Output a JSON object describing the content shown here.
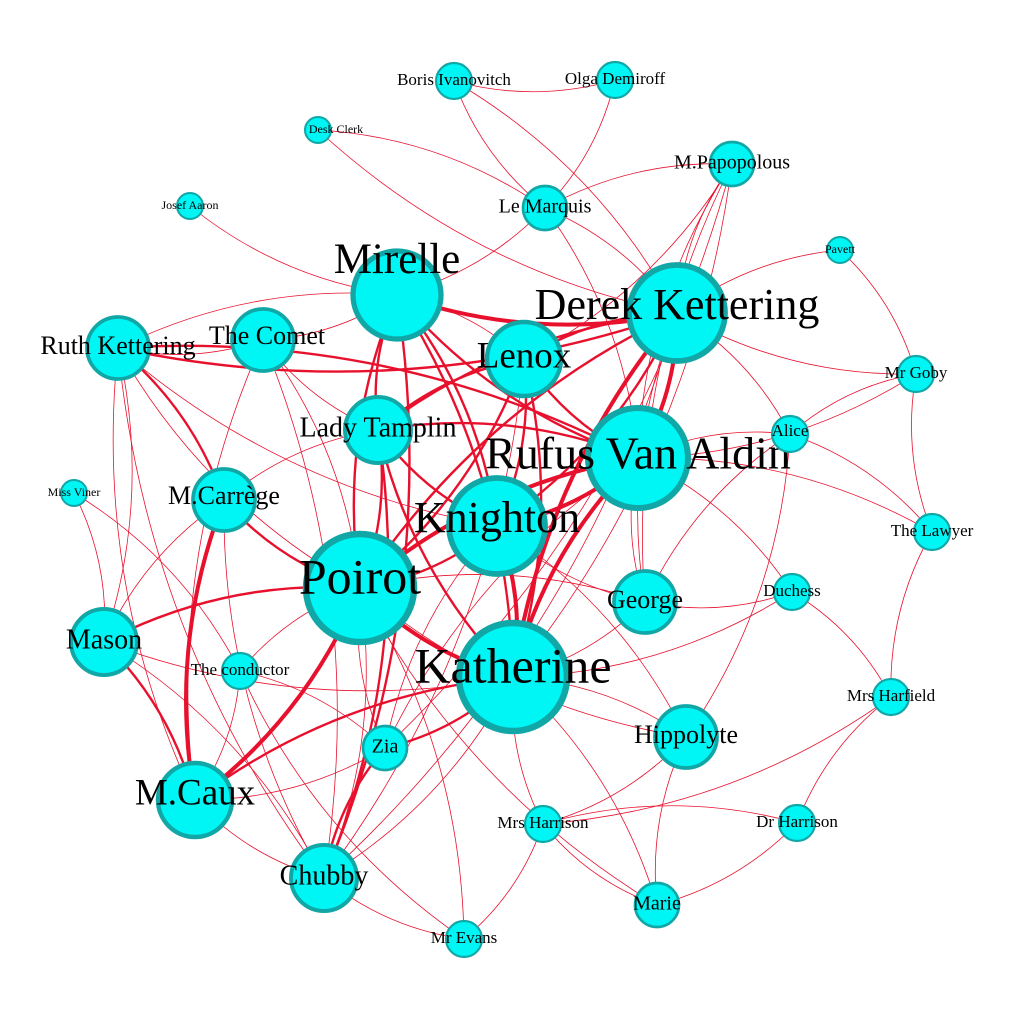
{
  "colors": {
    "node_fill": "#00f5f5",
    "node_stroke": "#11a7a7",
    "edge": "#e8112d",
    "label": "#000000",
    "background": "#ffffff"
  },
  "nodes": [
    {
      "id": "poirot",
      "label": "Poirot",
      "importance": 10
    },
    {
      "id": "katherine",
      "label": "Katherine",
      "importance": 10
    },
    {
      "id": "rufus",
      "label": "Rufus Van Aldin",
      "importance": 9
    },
    {
      "id": "derek",
      "label": "Derek Kettering",
      "importance": 8
    },
    {
      "id": "knighton",
      "label": "Knighton",
      "importance": 8
    },
    {
      "id": "mirelle",
      "label": "Mirelle",
      "importance": 7
    },
    {
      "id": "lenox",
      "label": "Lenox",
      "importance": 6
    },
    {
      "id": "tamplin",
      "label": "Lady Tamplin",
      "importance": 5
    },
    {
      "id": "caux",
      "label": "M.Caux",
      "importance": 6
    },
    {
      "id": "chubby",
      "label": "Chubby",
      "importance": 5
    },
    {
      "id": "mason",
      "label": "Mason",
      "importance": 5
    },
    {
      "id": "ruth",
      "label": "Ruth Kettering",
      "importance": 4
    },
    {
      "id": "comet",
      "label": "The Comet",
      "importance": 4
    },
    {
      "id": "carrege",
      "label": "M.Carrège",
      "importance": 4
    },
    {
      "id": "george",
      "label": "George",
      "importance": 4
    },
    {
      "id": "hippolyte",
      "label": "Hippolyte",
      "importance": 4
    },
    {
      "id": "marie",
      "label": "Marie",
      "importance": 3
    },
    {
      "id": "zia",
      "label": "Zia",
      "importance": 3
    },
    {
      "id": "conductor",
      "label": "The conductor",
      "importance": 2
    },
    {
      "id": "lemarquis",
      "label": "Le Marquis",
      "importance": 3
    },
    {
      "id": "papopolous",
      "label": "M.Papopolous",
      "importance": 3
    },
    {
      "id": "alice",
      "label": "Alice",
      "importance": 2
    },
    {
      "id": "duchess",
      "label": "Duchess",
      "importance": 2
    },
    {
      "id": "lawyer",
      "label": "The Lawyer",
      "importance": 2
    },
    {
      "id": "goby",
      "label": "Mr Goby",
      "importance": 2
    },
    {
      "id": "pavett",
      "label": "Pavett",
      "importance": 1
    },
    {
      "id": "mrsharrison",
      "label": "Mrs Harrison",
      "importance": 2
    },
    {
      "id": "drharrison",
      "label": "Dr Harrison",
      "importance": 2
    },
    {
      "id": "harfield",
      "label": "Mrs Harfield",
      "importance": 2
    },
    {
      "id": "evans",
      "label": "Mr Evans",
      "importance": 2
    },
    {
      "id": "boris",
      "label": "Boris Ivanovitch",
      "importance": 2
    },
    {
      "id": "olga",
      "label": "Olga Demiroff",
      "importance": 2
    },
    {
      "id": "deskclerk",
      "label": "Desk Clerk",
      "importance": 1
    },
    {
      "id": "josef",
      "label": "Josef Aaron",
      "importance": 1
    },
    {
      "id": "viner",
      "label": "Miss Viner",
      "importance": 1
    }
  ],
  "edges": [
    [
      "poirot",
      "katherine",
      3
    ],
    [
      "poirot",
      "rufus",
      3
    ],
    [
      "poirot",
      "knighton",
      2
    ],
    [
      "poirot",
      "derek",
      2
    ],
    [
      "poirot",
      "lenox",
      2
    ],
    [
      "poirot",
      "mirelle",
      2
    ],
    [
      "poirot",
      "tamplin",
      2
    ],
    [
      "poirot",
      "caux",
      3
    ],
    [
      "poirot",
      "mason",
      2
    ],
    [
      "poirot",
      "chubby",
      1
    ],
    [
      "poirot",
      "zia",
      1
    ],
    [
      "poirot",
      "george",
      1
    ],
    [
      "poirot",
      "hippolyte",
      1
    ],
    [
      "poirot",
      "carrege",
      2
    ],
    [
      "poirot",
      "comet",
      1
    ],
    [
      "poirot",
      "ruth",
      1
    ],
    [
      "poirot",
      "conductor",
      1
    ],
    [
      "poirot",
      "evans",
      1
    ],
    [
      "poirot",
      "marie",
      1
    ],
    [
      "katherine",
      "rufus",
      3
    ],
    [
      "katherine",
      "knighton",
      3
    ],
    [
      "katherine",
      "derek",
      3
    ],
    [
      "katherine",
      "lenox",
      2
    ],
    [
      "katherine",
      "tamplin",
      2
    ],
    [
      "katherine",
      "mirelle",
      2
    ],
    [
      "katherine",
      "zia",
      2
    ],
    [
      "katherine",
      "caux",
      2
    ],
    [
      "katherine",
      "chubby",
      1
    ],
    [
      "katherine",
      "george",
      1
    ],
    [
      "katherine",
      "hippolyte",
      1
    ],
    [
      "katherine",
      "mrsharrison",
      1
    ],
    [
      "katherine",
      "marie",
      1
    ],
    [
      "katherine",
      "duchess",
      1
    ],
    [
      "katherine",
      "mason",
      1
    ],
    [
      "katherine",
      "papopolous",
      1
    ],
    [
      "rufus",
      "knighton",
      3
    ],
    [
      "rufus",
      "derek",
      3
    ],
    [
      "rufus",
      "lenox",
      2
    ],
    [
      "rufus",
      "tamplin",
      2
    ],
    [
      "rufus",
      "mirelle",
      2
    ],
    [
      "rufus",
      "george",
      1
    ],
    [
      "rufus",
      "alice",
      1
    ],
    [
      "rufus",
      "goby",
      1
    ],
    [
      "rufus",
      "lawyer",
      1
    ],
    [
      "rufus",
      "ruth",
      2
    ],
    [
      "rufus",
      "papopolous",
      1
    ],
    [
      "rufus",
      "lemarquis",
      1
    ],
    [
      "rufus",
      "duchess",
      1
    ],
    [
      "rufus",
      "zia",
      1
    ],
    [
      "derek",
      "mirelle",
      3
    ],
    [
      "derek",
      "lenox",
      2
    ],
    [
      "derek",
      "knighton",
      2
    ],
    [
      "derek",
      "tamplin",
      2
    ],
    [
      "derek",
      "ruth",
      2
    ],
    [
      "derek",
      "lemarquis",
      1
    ],
    [
      "derek",
      "pavett",
      1
    ],
    [
      "derek",
      "goby",
      1
    ],
    [
      "derek",
      "papopolous",
      1
    ],
    [
      "derek",
      "george",
      1
    ],
    [
      "derek",
      "alice",
      1
    ],
    [
      "derek",
      "boris",
      1
    ],
    [
      "derek",
      "chubby",
      1
    ],
    [
      "knighton",
      "mirelle",
      2
    ],
    [
      "knighton",
      "tamplin",
      2
    ],
    [
      "knighton",
      "lenox",
      2
    ],
    [
      "knighton",
      "ruth",
      1
    ],
    [
      "knighton",
      "george",
      1
    ],
    [
      "knighton",
      "hippolyte",
      1
    ],
    [
      "knighton",
      "zia",
      1
    ],
    [
      "mirelle",
      "lenox",
      1
    ],
    [
      "mirelle",
      "tamplin",
      2
    ],
    [
      "mirelle",
      "comet",
      1
    ],
    [
      "mirelle",
      "ruth",
      1
    ],
    [
      "mirelle",
      "chubby",
      2
    ],
    [
      "mirelle",
      "lemarquis",
      1
    ],
    [
      "mirelle",
      "josef",
      1
    ],
    [
      "lenox",
      "tamplin",
      2
    ],
    [
      "lenox",
      "chubby",
      1
    ],
    [
      "lenox",
      "papopolous",
      1
    ],
    [
      "tamplin",
      "chubby",
      2
    ],
    [
      "tamplin",
      "carrege",
      1
    ],
    [
      "tamplin",
      "comet",
      1
    ],
    [
      "caux",
      "mason",
      2
    ],
    [
      "caux",
      "carrege",
      3
    ],
    [
      "caux",
      "chubby",
      1
    ],
    [
      "caux",
      "ruth",
      1
    ],
    [
      "caux",
      "conductor",
      1
    ],
    [
      "caux",
      "comet",
      1
    ],
    [
      "caux",
      "zia",
      1
    ],
    [
      "chubby",
      "zia",
      2
    ],
    [
      "chubby",
      "evans",
      1
    ],
    [
      "chubby",
      "ruth",
      1
    ],
    [
      "chubby",
      "comet",
      1
    ],
    [
      "chubby",
      "carrege",
      1
    ],
    [
      "mason",
      "ruth",
      1
    ],
    [
      "mason",
      "carrege",
      1
    ],
    [
      "mason",
      "viner",
      1
    ],
    [
      "mason",
      "chubby",
      1
    ],
    [
      "ruth",
      "comet",
      1
    ],
    [
      "ruth",
      "carrege",
      2
    ],
    [
      "george",
      "duchess",
      1
    ],
    [
      "george",
      "alice",
      1
    ],
    [
      "hippolyte",
      "marie",
      1
    ],
    [
      "hippolyte",
      "mrsharrison",
      1
    ],
    [
      "hippolyte",
      "alice",
      1
    ],
    [
      "marie",
      "mrsharrison",
      1
    ],
    [
      "marie",
      "drharrison",
      1
    ],
    [
      "mrsharrison",
      "drharrison",
      1
    ],
    [
      "mrsharrison",
      "harfield",
      1
    ],
    [
      "mrsharrison",
      "evans",
      1
    ],
    [
      "harfield",
      "drharrison",
      1
    ],
    [
      "harfield",
      "lawyer",
      1
    ],
    [
      "harfield",
      "duchess",
      1
    ],
    [
      "lemarquis",
      "boris",
      1
    ],
    [
      "lemarquis",
      "olga",
      1
    ],
    [
      "lemarquis",
      "papopolous",
      1
    ],
    [
      "boris",
      "olga",
      1
    ],
    [
      "deskclerk",
      "lemarquis",
      1
    ],
    [
      "deskclerk",
      "derek",
      1
    ],
    [
      "papopolous",
      "zia",
      1
    ],
    [
      "papopolous",
      "george",
      1
    ],
    [
      "lawyer",
      "goby",
      1
    ],
    [
      "lawyer",
      "alice",
      1
    ],
    [
      "viner",
      "conductor",
      1
    ],
    [
      "conductor",
      "evans",
      1
    ],
    [
      "conductor",
      "zia",
      1
    ],
    [
      "goby",
      "alice",
      1
    ],
    [
      "pavett",
      "goby",
      1
    ]
  ]
}
